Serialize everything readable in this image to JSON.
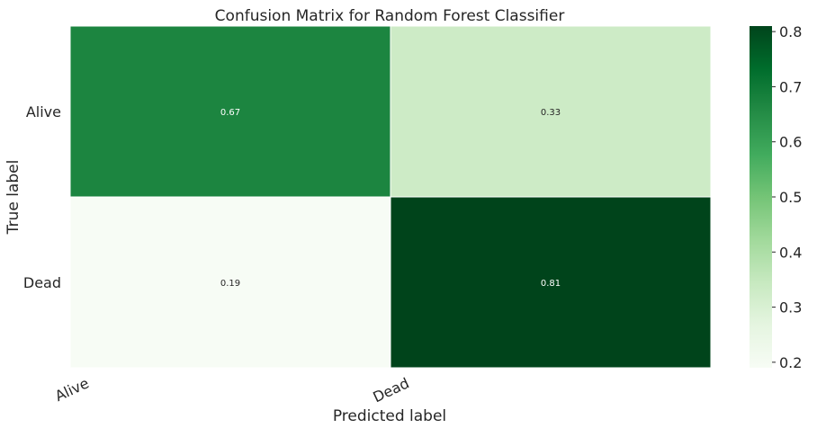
{
  "chart_data": {
    "type": "heatmap",
    "title": "Confusion Matrix for Random Forest Classifier",
    "xlabel": "Predicted label",
    "ylabel": "True label",
    "x_categories": [
      "Alive",
      "Dead"
    ],
    "y_categories": [
      "Alive",
      "Dead"
    ],
    "values": [
      [
        0.67,
        0.33
      ],
      [
        0.19,
        0.81
      ]
    ],
    "annotations": [
      [
        "0.67",
        "0.33"
      ],
      [
        "0.19",
        "0.81"
      ]
    ],
    "colorbar": {
      "range": [
        0.19,
        0.81
      ],
      "ticks": [
        "0.2",
        "0.3",
        "0.4",
        "0.5",
        "0.6",
        "0.7",
        "0.8"
      ],
      "colormap": "Greens",
      "low_color": "#f7fcf5",
      "high_color": "#00441b"
    },
    "grid": false
  }
}
